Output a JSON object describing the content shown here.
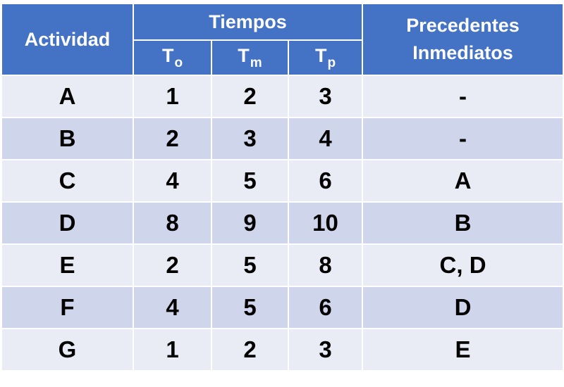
{
  "table": {
    "headers": {
      "activity": "Actividad",
      "times": "Tiempos",
      "optimistic": {
        "base": "T",
        "sub": "o"
      },
      "most_likely": {
        "base": "T",
        "sub": "m"
      },
      "pessimistic": {
        "base": "T",
        "sub": "p"
      },
      "predecessors_line1": "Precedentes",
      "predecessors_line2": "Inmediatos"
    },
    "rows": [
      {
        "activity": "A",
        "to": "1",
        "tm": "2",
        "tp": "3",
        "pred": "-"
      },
      {
        "activity": "B",
        "to": "2",
        "tm": "3",
        "tp": "4",
        "pred": "-"
      },
      {
        "activity": "C",
        "to": "4",
        "tm": "5",
        "tp": "6",
        "pred": "A"
      },
      {
        "activity": "D",
        "to": "8",
        "tm": "9",
        "tp": "10",
        "pred": "B"
      },
      {
        "activity": "E",
        "to": "2",
        "tm": "5",
        "tp": "8",
        "pred": "C, D"
      },
      {
        "activity": "F",
        "to": "4",
        "tm": "5",
        "tp": "6",
        "pred": "D"
      },
      {
        "activity": "G",
        "to": "1",
        "tm": "2",
        "tp": "3",
        "pred": "E"
      }
    ]
  },
  "colors": {
    "header": "#4472C4",
    "row_light": "#E9EBF5",
    "row_dark": "#CFD5EA"
  }
}
